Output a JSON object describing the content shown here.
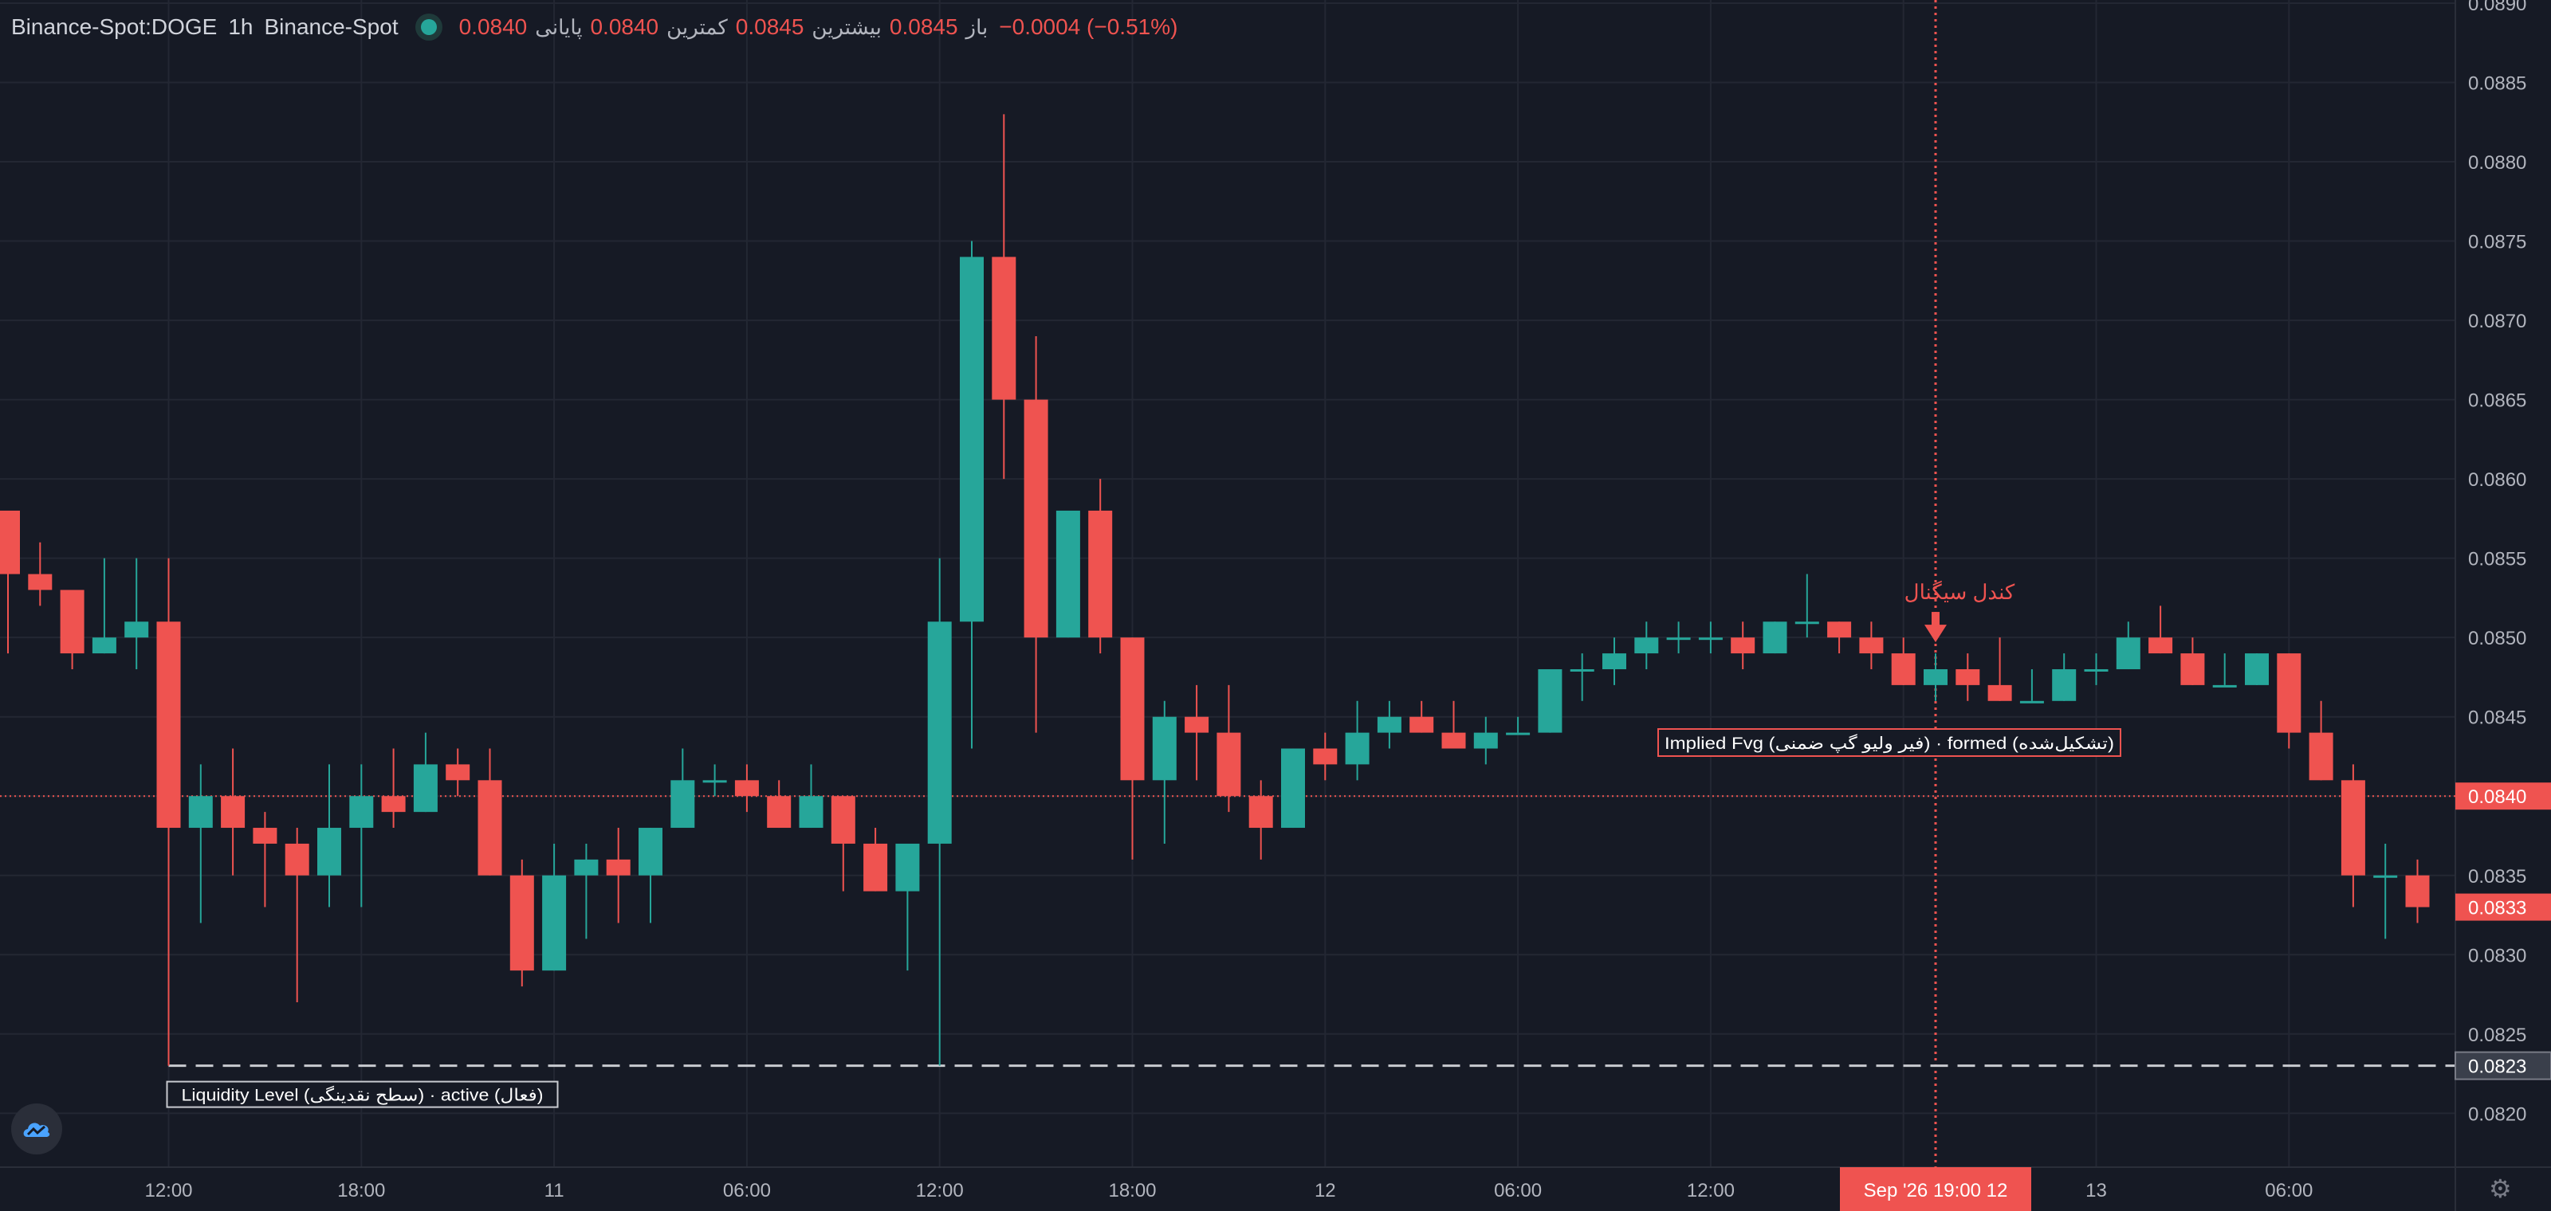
{
  "header": {
    "symbol": "Binance-Spot:DOGE",
    "interval": "1h",
    "exchange": "Binance-Spot",
    "ohlc_label_open": "باز",
    "ohlc_open": "0.0845",
    "ohlc_label_high": "بیشترین",
    "ohlc_high": "0.0845",
    "ohlc_label_low": "کمترین",
    "ohlc_low": "0.0840",
    "ohlc_label_close": "پایانی",
    "ohlc_close": "0.0840",
    "change": "−0.0004 (−0.51%)"
  },
  "annotations": {
    "signal_label": "کندل سیگنال",
    "fvg_label": "Implied Fvg (فیر ولیو گپ ضمنی) · formed (تشکیل‌شده)",
    "liquidity_label": "Liquidity Level (سطح نقدینگی) · active (فعال)"
  },
  "crosshair": {
    "time_label": "Sep '26   19:00 12"
  },
  "colors": {
    "up": "#26a69a",
    "down": "#ef5350",
    "background": "#161a25",
    "grid": "#232733",
    "text": "#b2b5be",
    "liquidity": "#c8cad0"
  },
  "icons": {
    "brand": "cloud-logo-icon",
    "settings": "gear-icon"
  },
  "chart_data": {
    "type": "candlestick",
    "price_axis": {
      "ylim": [
        0.08166,
        0.08902
      ],
      "ticks": [
        "0.0820",
        "0.0825",
        "0.0830",
        "0.0835",
        "0.0840",
        "0.0845",
        "0.0850",
        "0.0855",
        "0.0860",
        "0.0865",
        "0.0870",
        "0.0875",
        "0.0880",
        "0.0885",
        "0.0890"
      ],
      "badges": [
        {
          "value": 0.084,
          "label": "0.0840",
          "style": "red"
        },
        {
          "value": 0.0833,
          "label": "0.0833",
          "style": "red"
        },
        {
          "value": 0.0823,
          "label": "0.0823",
          "style": "gray"
        }
      ]
    },
    "time_axis": {
      "ticks": [
        {
          "i": 5,
          "label": "12:00"
        },
        {
          "i": 11,
          "label": "18:00"
        },
        {
          "i": 17,
          "label": "11"
        },
        {
          "i": 23,
          "label": "06:00"
        },
        {
          "i": 29,
          "label": "12:00"
        },
        {
          "i": 35,
          "label": "18:00"
        },
        {
          "i": 41,
          "label": "12"
        },
        {
          "i": 47,
          "label": "06:00"
        },
        {
          "i": 53,
          "label": "12:00"
        },
        {
          "i": 59,
          "label": ""
        },
        {
          "i": 65,
          "label": "13"
        },
        {
          "i": 71,
          "label": "06:00"
        }
      ]
    },
    "liquidity_level": 0.0823,
    "last_price": 0.084,
    "signal_index": 60,
    "candles": [
      [
        0.0858,
        0.0858,
        0.0849,
        0.0854
      ],
      [
        0.0854,
        0.0856,
        0.0852,
        0.0853
      ],
      [
        0.0853,
        0.0853,
        0.0848,
        0.0849
      ],
      [
        0.0849,
        0.0855,
        0.0849,
        0.085
      ],
      [
        0.085,
        0.0855,
        0.0848,
        0.0851
      ],
      [
        0.0851,
        0.0855,
        0.0823,
        0.0838
      ],
      [
        0.0838,
        0.0842,
        0.0832,
        0.084
      ],
      [
        0.084,
        0.0843,
        0.0835,
        0.0838
      ],
      [
        0.0838,
        0.0839,
        0.0833,
        0.0837
      ],
      [
        0.0837,
        0.0838,
        0.0827,
        0.0835
      ],
      [
        0.0835,
        0.0842,
        0.0833,
        0.0838
      ],
      [
        0.0838,
        0.0842,
        0.0833,
        0.084
      ],
      [
        0.084,
        0.0843,
        0.0838,
        0.0839
      ],
      [
        0.0839,
        0.0844,
        0.0839,
        0.0842
      ],
      [
        0.0842,
        0.0843,
        0.084,
        0.0841
      ],
      [
        0.0841,
        0.0843,
        0.0835,
        0.0835
      ],
      [
        0.0835,
        0.0836,
        0.0828,
        0.0829
      ],
      [
        0.0829,
        0.0837,
        0.0829,
        0.0835
      ],
      [
        0.0835,
        0.0837,
        0.0831,
        0.0836
      ],
      [
        0.0836,
        0.0838,
        0.0832,
        0.0835
      ],
      [
        0.0835,
        0.0838,
        0.0832,
        0.0838
      ],
      [
        0.0838,
        0.0843,
        0.0838,
        0.0841
      ],
      [
        0.0841,
        0.0842,
        0.084,
        0.0841
      ],
      [
        0.0841,
        0.0842,
        0.0839,
        0.084
      ],
      [
        0.084,
        0.0841,
        0.0838,
        0.0838
      ],
      [
        0.0838,
        0.0842,
        0.0838,
        0.084
      ],
      [
        0.084,
        0.084,
        0.0834,
        0.0837
      ],
      [
        0.0837,
        0.0838,
        0.0834,
        0.0834
      ],
      [
        0.0834,
        0.0837,
        0.0829,
        0.0837
      ],
      [
        0.0837,
        0.0855,
        0.0823,
        0.0851
      ],
      [
        0.0851,
        0.0875,
        0.0843,
        0.0874
      ],
      [
        0.0874,
        0.0883,
        0.086,
        0.0865
      ],
      [
        0.0865,
        0.0869,
        0.0844,
        0.085
      ],
      [
        0.085,
        0.0858,
        0.085,
        0.0858
      ],
      [
        0.0858,
        0.086,
        0.0849,
        0.085
      ],
      [
        0.085,
        0.085,
        0.0836,
        0.0841
      ],
      [
        0.0841,
        0.0846,
        0.0837,
        0.0845
      ],
      [
        0.0845,
        0.0847,
        0.0841,
        0.0844
      ],
      [
        0.0844,
        0.0847,
        0.0839,
        0.084
      ],
      [
        0.084,
        0.0841,
        0.0836,
        0.0838
      ],
      [
        0.0838,
        0.0843,
        0.0838,
        0.0843
      ],
      [
        0.0843,
        0.0844,
        0.0841,
        0.0842
      ],
      [
        0.0842,
        0.0846,
        0.0841,
        0.0844
      ],
      [
        0.0844,
        0.0846,
        0.0843,
        0.0845
      ],
      [
        0.0845,
        0.0846,
        0.0844,
        0.0844
      ],
      [
        0.0844,
        0.0846,
        0.0843,
        0.0843
      ],
      [
        0.0843,
        0.0845,
        0.0842,
        0.0844
      ],
      [
        0.0844,
        0.0845,
        0.0844,
        0.0844
      ],
      [
        0.0844,
        0.0848,
        0.0844,
        0.0848
      ],
      [
        0.0848,
        0.0849,
        0.0846,
        0.0848
      ],
      [
        0.0848,
        0.085,
        0.0847,
        0.0849
      ],
      [
        0.0849,
        0.0851,
        0.0848,
        0.085
      ],
      [
        0.085,
        0.0851,
        0.0849,
        0.085
      ],
      [
        0.085,
        0.0851,
        0.0849,
        0.085
      ],
      [
        0.085,
        0.0851,
        0.0848,
        0.0849
      ],
      [
        0.0849,
        0.0851,
        0.0849,
        0.0851
      ],
      [
        0.0851,
        0.0854,
        0.085,
        0.0851
      ],
      [
        0.0851,
        0.0851,
        0.0849,
        0.085
      ],
      [
        0.085,
        0.0851,
        0.0848,
        0.0849
      ],
      [
        0.0849,
        0.085,
        0.0847,
        0.0847
      ],
      [
        0.0847,
        0.0849,
        0.0846,
        0.0848
      ],
      [
        0.0848,
        0.0849,
        0.0846,
        0.0847
      ],
      [
        0.0847,
        0.085,
        0.0846,
        0.0846
      ],
      [
        0.0846,
        0.0848,
        0.0846,
        0.0846
      ],
      [
        0.0846,
        0.0849,
        0.0846,
        0.0848
      ],
      [
        0.0848,
        0.0849,
        0.0847,
        0.0848
      ],
      [
        0.0848,
        0.0851,
        0.0848,
        0.085
      ],
      [
        0.085,
        0.0852,
        0.0849,
        0.0849
      ],
      [
        0.0849,
        0.085,
        0.0847,
        0.0847
      ],
      [
        0.0847,
        0.0849,
        0.0847,
        0.0847
      ],
      [
        0.0847,
        0.0849,
        0.0847,
        0.0849
      ],
      [
        0.0849,
        0.0849,
        0.0843,
        0.0844
      ],
      [
        0.0844,
        0.0846,
        0.0841,
        0.0841
      ],
      [
        0.0841,
        0.0842,
        0.0833,
        0.0835
      ],
      [
        0.0835,
        0.0837,
        0.0831,
        0.0835
      ],
      [
        0.0835,
        0.0836,
        0.0832,
        0.0833
      ]
    ]
  }
}
